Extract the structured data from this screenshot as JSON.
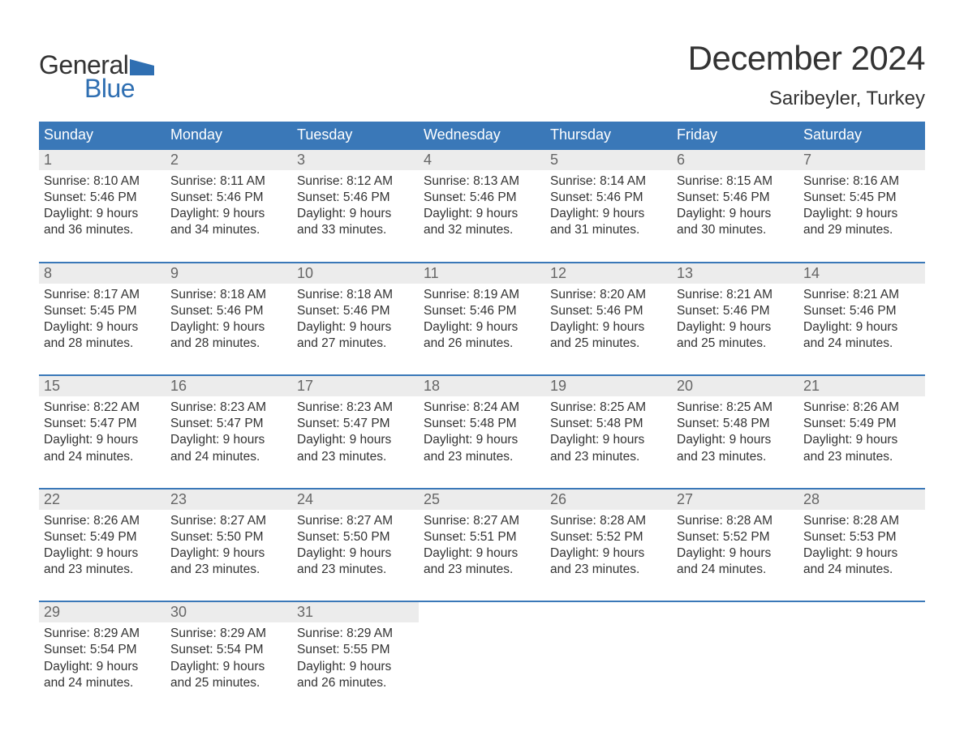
{
  "logo": {
    "word1": "General",
    "word2": "Blue",
    "flag_color": "#2f6fb2"
  },
  "title": "December 2024",
  "location": "Saribeyler, Turkey",
  "colors": {
    "header_bg": "#3a78b8",
    "header_text": "#ffffff",
    "daynum_bg": "#ececec",
    "daynum_text": "#666666",
    "body_text": "#333333",
    "week_border": "#3a78b8",
    "logo_blue": "#2f6fb2"
  },
  "day_headers": [
    "Sunday",
    "Monday",
    "Tuesday",
    "Wednesday",
    "Thursday",
    "Friday",
    "Saturday"
  ],
  "weeks": [
    [
      {
        "num": "1",
        "sunrise": "Sunrise: 8:10 AM",
        "sunset": "Sunset: 5:46 PM",
        "dl1": "Daylight: 9 hours",
        "dl2": "and 36 minutes."
      },
      {
        "num": "2",
        "sunrise": "Sunrise: 8:11 AM",
        "sunset": "Sunset: 5:46 PM",
        "dl1": "Daylight: 9 hours",
        "dl2": "and 34 minutes."
      },
      {
        "num": "3",
        "sunrise": "Sunrise: 8:12 AM",
        "sunset": "Sunset: 5:46 PM",
        "dl1": "Daylight: 9 hours",
        "dl2": "and 33 minutes."
      },
      {
        "num": "4",
        "sunrise": "Sunrise: 8:13 AM",
        "sunset": "Sunset: 5:46 PM",
        "dl1": "Daylight: 9 hours",
        "dl2": "and 32 minutes."
      },
      {
        "num": "5",
        "sunrise": "Sunrise: 8:14 AM",
        "sunset": "Sunset: 5:46 PM",
        "dl1": "Daylight: 9 hours",
        "dl2": "and 31 minutes."
      },
      {
        "num": "6",
        "sunrise": "Sunrise: 8:15 AM",
        "sunset": "Sunset: 5:46 PM",
        "dl1": "Daylight: 9 hours",
        "dl2": "and 30 minutes."
      },
      {
        "num": "7",
        "sunrise": "Sunrise: 8:16 AM",
        "sunset": "Sunset: 5:45 PM",
        "dl1": "Daylight: 9 hours",
        "dl2": "and 29 minutes."
      }
    ],
    [
      {
        "num": "8",
        "sunrise": "Sunrise: 8:17 AM",
        "sunset": "Sunset: 5:45 PM",
        "dl1": "Daylight: 9 hours",
        "dl2": "and 28 minutes."
      },
      {
        "num": "9",
        "sunrise": "Sunrise: 8:18 AM",
        "sunset": "Sunset: 5:46 PM",
        "dl1": "Daylight: 9 hours",
        "dl2": "and 28 minutes."
      },
      {
        "num": "10",
        "sunrise": "Sunrise: 8:18 AM",
        "sunset": "Sunset: 5:46 PM",
        "dl1": "Daylight: 9 hours",
        "dl2": "and 27 minutes."
      },
      {
        "num": "11",
        "sunrise": "Sunrise: 8:19 AM",
        "sunset": "Sunset: 5:46 PM",
        "dl1": "Daylight: 9 hours",
        "dl2": "and 26 minutes."
      },
      {
        "num": "12",
        "sunrise": "Sunrise: 8:20 AM",
        "sunset": "Sunset: 5:46 PM",
        "dl1": "Daylight: 9 hours",
        "dl2": "and 25 minutes."
      },
      {
        "num": "13",
        "sunrise": "Sunrise: 8:21 AM",
        "sunset": "Sunset: 5:46 PM",
        "dl1": "Daylight: 9 hours",
        "dl2": "and 25 minutes."
      },
      {
        "num": "14",
        "sunrise": "Sunrise: 8:21 AM",
        "sunset": "Sunset: 5:46 PM",
        "dl1": "Daylight: 9 hours",
        "dl2": "and 24 minutes."
      }
    ],
    [
      {
        "num": "15",
        "sunrise": "Sunrise: 8:22 AM",
        "sunset": "Sunset: 5:47 PM",
        "dl1": "Daylight: 9 hours",
        "dl2": "and 24 minutes."
      },
      {
        "num": "16",
        "sunrise": "Sunrise: 8:23 AM",
        "sunset": "Sunset: 5:47 PM",
        "dl1": "Daylight: 9 hours",
        "dl2": "and 24 minutes."
      },
      {
        "num": "17",
        "sunrise": "Sunrise: 8:23 AM",
        "sunset": "Sunset: 5:47 PM",
        "dl1": "Daylight: 9 hours",
        "dl2": "and 23 minutes."
      },
      {
        "num": "18",
        "sunrise": "Sunrise: 8:24 AM",
        "sunset": "Sunset: 5:48 PM",
        "dl1": "Daylight: 9 hours",
        "dl2": "and 23 minutes."
      },
      {
        "num": "19",
        "sunrise": "Sunrise: 8:25 AM",
        "sunset": "Sunset: 5:48 PM",
        "dl1": "Daylight: 9 hours",
        "dl2": "and 23 minutes."
      },
      {
        "num": "20",
        "sunrise": "Sunrise: 8:25 AM",
        "sunset": "Sunset: 5:48 PM",
        "dl1": "Daylight: 9 hours",
        "dl2": "and 23 minutes."
      },
      {
        "num": "21",
        "sunrise": "Sunrise: 8:26 AM",
        "sunset": "Sunset: 5:49 PM",
        "dl1": "Daylight: 9 hours",
        "dl2": "and 23 minutes."
      }
    ],
    [
      {
        "num": "22",
        "sunrise": "Sunrise: 8:26 AM",
        "sunset": "Sunset: 5:49 PM",
        "dl1": "Daylight: 9 hours",
        "dl2": "and 23 minutes."
      },
      {
        "num": "23",
        "sunrise": "Sunrise: 8:27 AM",
        "sunset": "Sunset: 5:50 PM",
        "dl1": "Daylight: 9 hours",
        "dl2": "and 23 minutes."
      },
      {
        "num": "24",
        "sunrise": "Sunrise: 8:27 AM",
        "sunset": "Sunset: 5:50 PM",
        "dl1": "Daylight: 9 hours",
        "dl2": "and 23 minutes."
      },
      {
        "num": "25",
        "sunrise": "Sunrise: 8:27 AM",
        "sunset": "Sunset: 5:51 PM",
        "dl1": "Daylight: 9 hours",
        "dl2": "and 23 minutes."
      },
      {
        "num": "26",
        "sunrise": "Sunrise: 8:28 AM",
        "sunset": "Sunset: 5:52 PM",
        "dl1": "Daylight: 9 hours",
        "dl2": "and 23 minutes."
      },
      {
        "num": "27",
        "sunrise": "Sunrise: 8:28 AM",
        "sunset": "Sunset: 5:52 PM",
        "dl1": "Daylight: 9 hours",
        "dl2": "and 24 minutes."
      },
      {
        "num": "28",
        "sunrise": "Sunrise: 8:28 AM",
        "sunset": "Sunset: 5:53 PM",
        "dl1": "Daylight: 9 hours",
        "dl2": "and 24 minutes."
      }
    ],
    [
      {
        "num": "29",
        "sunrise": "Sunrise: 8:29 AM",
        "sunset": "Sunset: 5:54 PM",
        "dl1": "Daylight: 9 hours",
        "dl2": "and 24 minutes."
      },
      {
        "num": "30",
        "sunrise": "Sunrise: 8:29 AM",
        "sunset": "Sunset: 5:54 PM",
        "dl1": "Daylight: 9 hours",
        "dl2": "and 25 minutes."
      },
      {
        "num": "31",
        "sunrise": "Sunrise: 8:29 AM",
        "sunset": "Sunset: 5:55 PM",
        "dl1": "Daylight: 9 hours",
        "dl2": "and 26 minutes."
      },
      {
        "empty": true
      },
      {
        "empty": true
      },
      {
        "empty": true
      },
      {
        "empty": true
      }
    ]
  ]
}
